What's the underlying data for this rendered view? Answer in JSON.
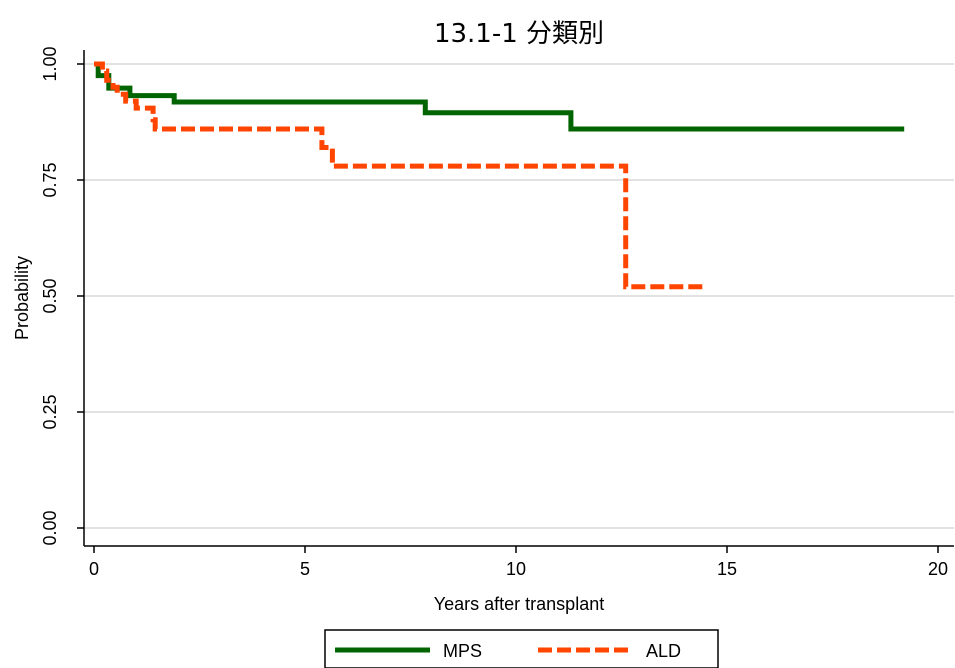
{
  "chart_data": {
    "type": "line",
    "title": "13.1-1 分類別",
    "xlabel": "Years after transplant",
    "ylabel": "Probability",
    "xlim": [
      0,
      20
    ],
    "ylim": [
      0,
      1
    ],
    "x_ticks": [
      0,
      5,
      10,
      15,
      20
    ],
    "x_tick_labels": [
      "0",
      "5",
      "10",
      "15",
      "20"
    ],
    "y_ticks": [
      0,
      0.25,
      0.5,
      0.75,
      1
    ],
    "y_tick_labels": [
      "0.00",
      "0.25",
      "0.50",
      "0.75",
      "1.00"
    ],
    "grid": "horizontal",
    "legend_position": "bottom",
    "series": [
      {
        "name": "MPS",
        "color": "#006400",
        "style": "solid",
        "x": [
          0,
          0.1,
          0.1,
          0.35,
          0.35,
          0.85,
          0.85,
          1.9,
          1.9,
          7.85,
          7.85,
          11.3,
          11.3,
          19.2
        ],
        "y": [
          1.0,
          1.0,
          0.975,
          0.975,
          0.948,
          0.948,
          0.932,
          0.932,
          0.918,
          0.918,
          0.895,
          0.895,
          0.86,
          0.86
        ]
      },
      {
        "name": "ALD",
        "color": "#FF4500",
        "style": "dashed",
        "x": [
          0,
          0.2,
          0.2,
          0.3,
          0.3,
          0.45,
          0.45,
          0.55,
          0.55,
          0.75,
          0.75,
          1.0,
          1.0,
          1.4,
          1.4,
          1.45,
          1.45,
          5.4,
          5.4,
          5.65,
          5.65,
          12.6,
          12.6,
          14.5
        ],
        "y": [
          1.0,
          1.0,
          0.985,
          0.985,
          0.965,
          0.965,
          0.95,
          0.95,
          0.935,
          0.935,
          0.92,
          0.92,
          0.905,
          0.905,
          0.88,
          0.88,
          0.86,
          0.86,
          0.82,
          0.82,
          0.78,
          0.78,
          0.52,
          0.52
        ]
      }
    ]
  }
}
